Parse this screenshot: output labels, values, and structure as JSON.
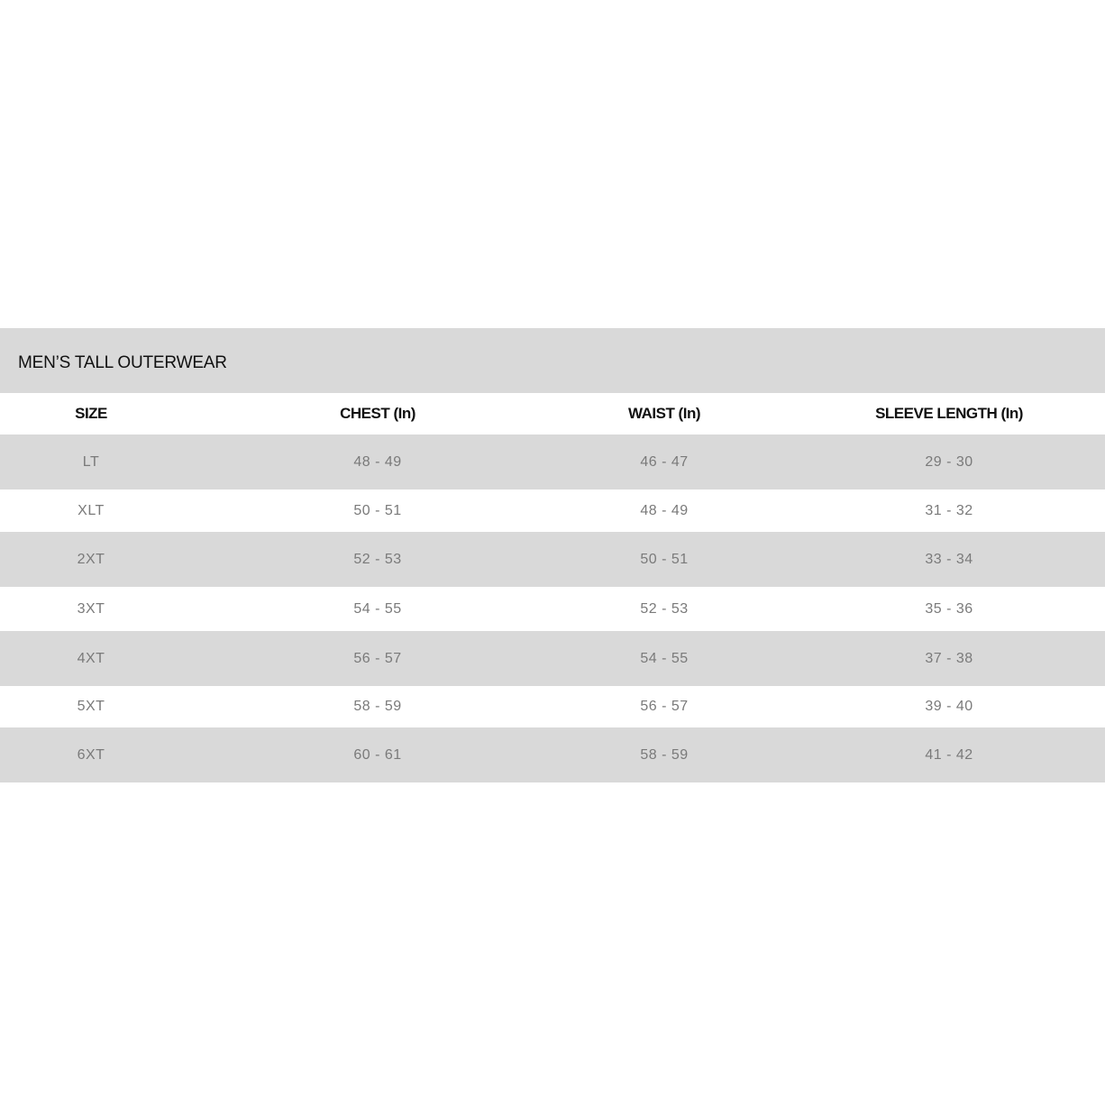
{
  "title": "MEN’S TALL OUTERWEAR",
  "colors": {
    "band": "#d9d9d9",
    "header_text": "#111111",
    "cell_text": "#7a7a7a"
  },
  "headers": [
    "SIZE",
    "CHEST (In)",
    "WAIST (In)",
    "SLEEVE LENGTH (In)"
  ],
  "rows": [
    [
      "LT",
      "48 - 49",
      "46 - 47",
      "29 - 30"
    ],
    [
      "XLT",
      "50 - 51",
      "48 - 49",
      "31 - 32"
    ],
    [
      "2XT",
      "52 - 53",
      "50 - 51",
      "33 - 34"
    ],
    [
      "3XT",
      "54 - 55",
      "52 - 53",
      "35 - 36"
    ],
    [
      "4XT",
      "56 - 57",
      "54 - 55",
      "37 - 38"
    ],
    [
      "5XT",
      "58 - 59",
      "56 - 57",
      "39 - 40"
    ],
    [
      "6XT",
      "60 - 61",
      "58 - 59",
      "41 - 42"
    ]
  ]
}
